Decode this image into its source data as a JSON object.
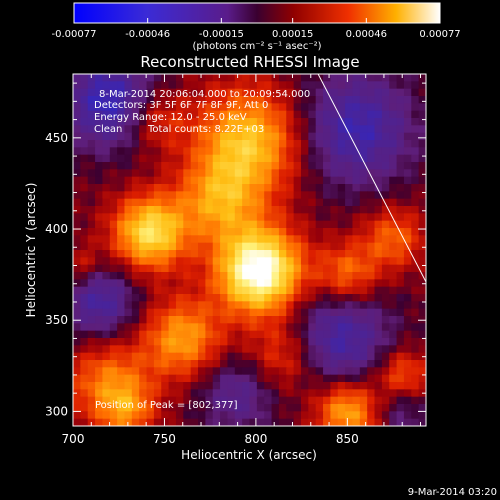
{
  "chart_data": {
    "type": "heatmap",
    "title": "Reconstructed RHESSI Image",
    "xlabel": "Heliocentric X (arcsec)",
    "ylabel": "Heliocentric Y (arcsec)",
    "xlim": [
      700,
      893
    ],
    "ylim": [
      292,
      485
    ],
    "x_ticks": [
      "700",
      "750",
      "800",
      "850"
    ],
    "y_ticks": [
      "300",
      "350",
      "400",
      "450"
    ],
    "colorbar": {
      "colormap": "hot-blue",
      "range": [
        -0.00077,
        0.00077
      ],
      "tick_labels": [
        "-0.00077",
        "-0.00046",
        "-0.00015",
        "0.00015",
        "0.00046",
        "0.00077"
      ],
      "unit_label": "(photons cm⁻² s⁻¹ asec⁻²)"
    },
    "annotations": {
      "time_range": "8-Mar-2014 20:06:04.000 to 20:09:54.000",
      "detectors": "Detectors: 3F 5F 6F 7F 8F 9F, Att 0",
      "energy": "Energy Range: 12.0 - 25.0 keV",
      "method": "Clean",
      "counts": "Total counts: 8.22E+03",
      "peak": "Position of Peak = [802,377]"
    },
    "peak": [
      802,
      377
    ],
    "limb_line": [
      [
        834,
        485
      ],
      [
        893,
        371
      ]
    ],
    "sources": [
      {
        "x": 802,
        "y": 377,
        "r": 16,
        "amp": 1.0
      },
      {
        "x": 742,
        "y": 398,
        "r": 14,
        "amp": 0.72
      },
      {
        "x": 796,
        "y": 448,
        "r": 20,
        "amp": 0.62
      },
      {
        "x": 780,
        "y": 415,
        "r": 16,
        "amp": 0.45
      },
      {
        "x": 760,
        "y": 340,
        "r": 15,
        "amp": 0.5
      },
      {
        "x": 720,
        "y": 315,
        "r": 16,
        "amp": 0.42
      },
      {
        "x": 850,
        "y": 300,
        "r": 12,
        "amp": 0.55
      },
      {
        "x": 880,
        "y": 320,
        "r": 10,
        "amp": 0.35
      },
      {
        "x": 850,
        "y": 375,
        "r": 12,
        "amp": 0.4
      },
      {
        "x": 875,
        "y": 395,
        "r": 12,
        "amp": 0.35
      },
      {
        "x": 815,
        "y": 330,
        "r": 14,
        "amp": 0.32
      },
      {
        "x": 745,
        "y": 460,
        "r": 12,
        "amp": 0.28
      },
      {
        "x": 705,
        "y": 380,
        "r": 8,
        "amp": 0.2
      },
      {
        "x": 730,
        "y": 300,
        "r": 10,
        "amp": 0.3
      }
    ],
    "negatives": [
      {
        "x": 720,
        "y": 470,
        "r": 18,
        "amp": 1.0
      },
      {
        "x": 855,
        "y": 455,
        "r": 22,
        "amp": 0.9
      },
      {
        "x": 715,
        "y": 360,
        "r": 14,
        "amp": 0.8
      },
      {
        "x": 845,
        "y": 340,
        "r": 20,
        "amp": 0.85
      },
      {
        "x": 790,
        "y": 310,
        "r": 15,
        "amp": 0.6
      },
      {
        "x": 880,
        "y": 300,
        "r": 10,
        "amp": 0.4
      }
    ]
  },
  "footer": {
    "timestamp": "9-Mar-2014 03:20"
  }
}
